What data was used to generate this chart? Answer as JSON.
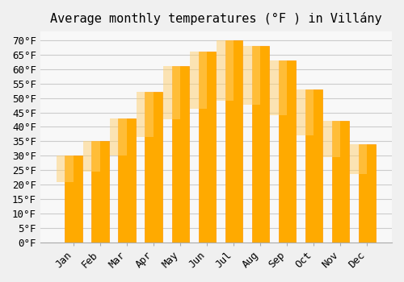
{
  "title": "Average monthly temperatures (°F ) in Villány",
  "months": [
    "Jan",
    "Feb",
    "Mar",
    "Apr",
    "May",
    "Jun",
    "Jul",
    "Aug",
    "Sep",
    "Oct",
    "Nov",
    "Dec"
  ],
  "values": [
    30,
    35,
    43,
    52,
    61,
    66,
    70,
    68,
    63,
    53,
    42,
    34
  ],
  "bar_color": "#FFAA00",
  "bar_edge_color": "#FF9900",
  "background_color": "#F0F0F0",
  "plot_bg_color": "#F8F8F8",
  "ylim": [
    0,
    73
  ],
  "yticks": [
    0,
    5,
    10,
    15,
    20,
    25,
    30,
    35,
    40,
    45,
    50,
    55,
    60,
    65,
    70
  ],
  "ytick_labels": [
    "0°F",
    "5°F",
    "10°F",
    "15°F",
    "20°F",
    "25°F",
    "30°F",
    "35°F",
    "40°F",
    "45°F",
    "50°F",
    "55°F",
    "60°F",
    "65°F",
    "70°F"
  ],
  "grid_color": "#CCCCCC",
  "title_fontsize": 11,
  "tick_fontsize": 9,
  "bar_width": 0.65
}
